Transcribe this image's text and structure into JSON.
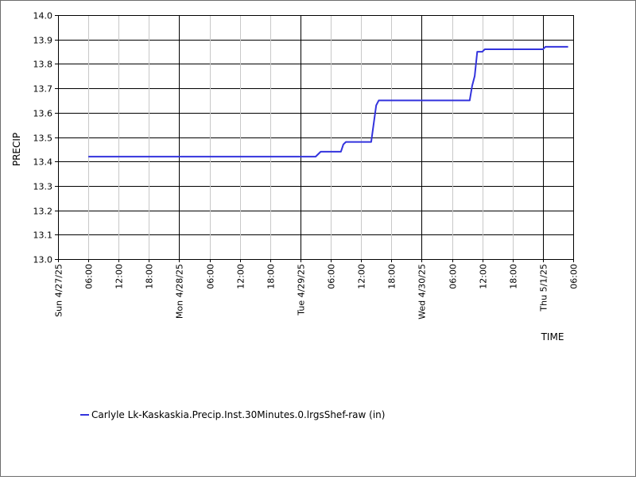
{
  "chart_data": {
    "type": "line",
    "title": "",
    "xlabel": "TIME",
    "ylabel": "PRECIP",
    "ylim": [
      13.0,
      14.0
    ],
    "yticks": [
      "13.0",
      "13.1",
      "13.2",
      "13.3",
      "13.4",
      "13.5",
      "13.6",
      "13.7",
      "13.8",
      "13.9",
      "14.0"
    ],
    "xlim": [
      "2025-04-27 00:00",
      "2025-05-01 06:00"
    ],
    "xticks": [
      {
        "label": "Sun 4/27/25",
        "time": "2025-04-27 00:00",
        "major": true
      },
      {
        "label": "06:00",
        "time": "2025-04-27 06:00",
        "major": false
      },
      {
        "label": "12:00",
        "time": "2025-04-27 12:00",
        "major": false
      },
      {
        "label": "18:00",
        "time": "2025-04-27 18:00",
        "major": false
      },
      {
        "label": "Mon 4/28/25",
        "time": "2025-04-28 00:00",
        "major": true
      },
      {
        "label": "06:00",
        "time": "2025-04-28 06:00",
        "major": false
      },
      {
        "label": "12:00",
        "time": "2025-04-28 12:00",
        "major": false
      },
      {
        "label": "18:00",
        "time": "2025-04-28 18:00",
        "major": false
      },
      {
        "label": "Tue 4/29/25",
        "time": "2025-04-29 00:00",
        "major": true
      },
      {
        "label": "06:00",
        "time": "2025-04-29 06:00",
        "major": false
      },
      {
        "label": "12:00",
        "time": "2025-04-29 12:00",
        "major": false
      },
      {
        "label": "18:00",
        "time": "2025-04-29 18:00",
        "major": false
      },
      {
        "label": "Wed 4/30/25",
        "time": "2025-04-30 00:00",
        "major": true
      },
      {
        "label": "06:00",
        "time": "2025-04-30 06:00",
        "major": false
      },
      {
        "label": "12:00",
        "time": "2025-04-30 12:00",
        "major": false
      },
      {
        "label": "18:00",
        "time": "2025-04-30 18:00",
        "major": false
      },
      {
        "label": "Thu 5/1/25",
        "time": "2025-05-01 00:00",
        "major": true
      },
      {
        "label": "06:00",
        "time": "2025-05-01 06:00",
        "major": false
      }
    ],
    "grid": true,
    "legend_position": "bottom-left",
    "series": [
      {
        "name": "Carlyle Lk-Kaskaskia.Precip.Inst.30Minutes.0.lrgsShef-raw (in)",
        "color": "#3333dd",
        "points": [
          [
            "2025-04-27 06:00",
            13.42
          ],
          [
            "2025-04-29 03:00",
            13.42
          ],
          [
            "2025-04-29 04:00",
            13.44
          ],
          [
            "2025-04-29 08:00",
            13.44
          ],
          [
            "2025-04-29 08:30",
            13.47
          ],
          [
            "2025-04-29 09:00",
            13.48
          ],
          [
            "2025-04-29 14:00",
            13.48
          ],
          [
            "2025-04-29 15:00",
            13.63
          ],
          [
            "2025-04-29 15:30",
            13.65
          ],
          [
            "2025-04-30 09:30",
            13.65
          ],
          [
            "2025-04-30 10:00",
            13.71
          ],
          [
            "2025-04-30 10:30",
            13.75
          ],
          [
            "2025-04-30 11:00",
            13.85
          ],
          [
            "2025-04-30 12:00",
            13.85
          ],
          [
            "2025-04-30 12:30",
            13.86
          ],
          [
            "2025-05-01 00:00",
            13.86
          ],
          [
            "2025-05-01 00:30",
            13.87
          ],
          [
            "2025-05-01 05:00",
            13.87
          ]
        ]
      }
    ]
  }
}
